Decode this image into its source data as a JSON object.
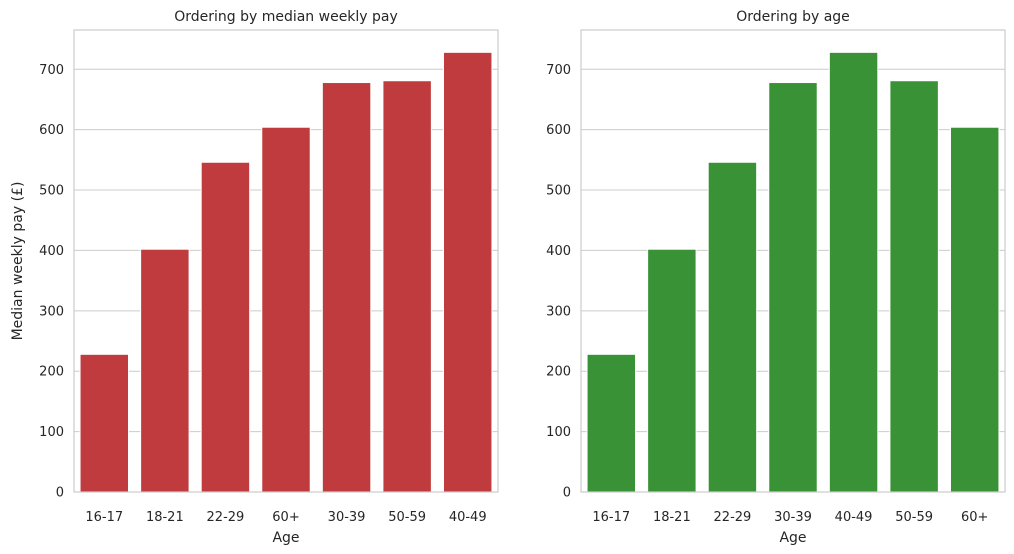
{
  "chart_data": [
    {
      "type": "bar",
      "title": "Ordering by median weekly pay",
      "xlabel": "Age",
      "ylabel": "Median weekly pay (£)",
      "categories": [
        "16-17",
        "18-21",
        "22-29",
        "60+",
        "30-39",
        "50-59",
        "40-49"
      ],
      "values": [
        228,
        402,
        546,
        604,
        678,
        681,
        728
      ],
      "ylim": [
        0,
        765
      ],
      "yticks": [
        0,
        100,
        200,
        300,
        400,
        500,
        600,
        700
      ],
      "grid": "horizontal",
      "color": "#c03b3d"
    },
    {
      "type": "bar",
      "title": "Ordering by age",
      "xlabel": "Age",
      "ylabel": "",
      "categories": [
        "16-17",
        "18-21",
        "22-29",
        "30-39",
        "40-49",
        "50-59",
        "60+"
      ],
      "values": [
        228,
        402,
        546,
        678,
        728,
        681,
        604
      ],
      "ylim": [
        0,
        765
      ],
      "yticks": [
        0,
        100,
        200,
        300,
        400,
        500,
        600,
        700
      ],
      "grid": "horizontal",
      "color": "#3a9236"
    }
  ]
}
